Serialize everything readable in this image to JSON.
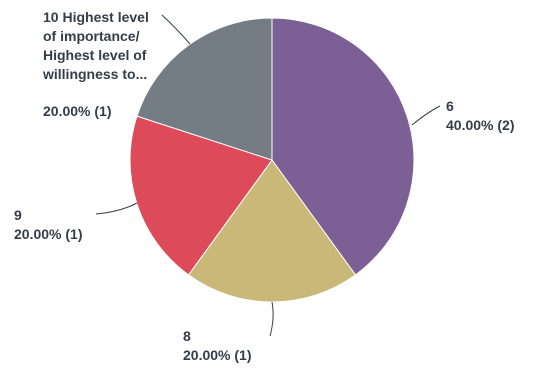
{
  "chart_data": {
    "type": "pie",
    "title": "",
    "slices": [
      {
        "name": "6",
        "percent": 40.0,
        "count": 2,
        "pct_label": "40.00% (2)",
        "color": "#7b5f95"
      },
      {
        "name": "8",
        "percent": 20.0,
        "count": 1,
        "pct_label": "20.00% (1)",
        "color": "#c9b877"
      },
      {
        "name": "9",
        "percent": 20.0,
        "count": 1,
        "pct_label": "20.00% (1)",
        "color": "#dd4b5a"
      },
      {
        "name": "10 Highest level of importance/ Highest level of willingness to...",
        "name_lines": [
          "10 Highest level",
          "of importance/",
          "Highest level of",
          "willingness to..."
        ],
        "percent": 20.0,
        "count": 1,
        "pct_label": "20.00% (1)",
        "color": "#757d84"
      }
    ]
  }
}
